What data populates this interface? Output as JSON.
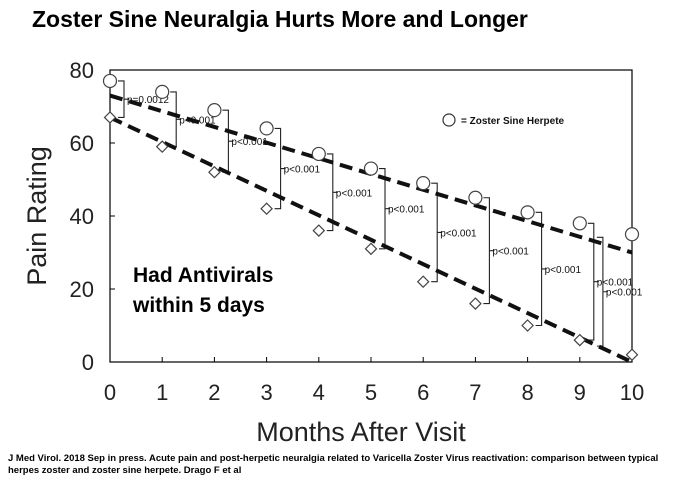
{
  "title": "Zoster Sine Neuralgia Hurts More and Longer",
  "citation": "J Med Virol. 2018 Sep in press. Acute pain and post-herpetic neuralgia related to Varicella Zoster Virus reactivation: comparison between typical herpes zoster and zoster sine herpete. Drago F et al",
  "chart_data": {
    "type": "scatter",
    "xlabel": "Months After Visit",
    "ylabel": "Pain Rating",
    "xlim": [
      0,
      10
    ],
    "ylim": [
      0,
      80
    ],
    "x_ticks": [
      "0",
      "1",
      "2",
      "3",
      "4",
      "5",
      "6",
      "7",
      "8",
      "9",
      "10"
    ],
    "y_ticks": [
      "0",
      "20",
      "40",
      "60",
      "80"
    ],
    "grid": false,
    "legend_position": "top-right",
    "annotation": [
      "Had Antivirals",
      "within 5 days"
    ],
    "series": [
      {
        "name": "= Zoster Sine Herpete",
        "marker": "circle",
        "x": [
          0,
          1,
          2,
          3,
          4,
          5,
          6,
          7,
          8,
          9,
          10
        ],
        "y": [
          77,
          74,
          69,
          64,
          57,
          53,
          49,
          45,
          41,
          38,
          35
        ]
      },
      {
        "marker": "diamond",
        "x": [
          0,
          1,
          2,
          3,
          4,
          5,
          6,
          7,
          8,
          9,
          10
        ],
        "y": [
          67,
          59,
          52,
          42,
          36,
          31,
          22,
          16,
          10,
          6,
          2
        ]
      }
    ],
    "trendlines": [
      {
        "series": 0,
        "x": [
          0,
          10
        ],
        "y": [
          73,
          30
        ]
      },
      {
        "series": 1,
        "x": [
          0,
          10
        ],
        "y": [
          67,
          0
        ]
      }
    ],
    "p_values": [
      {
        "x": 0,
        "label": "p=0.0012"
      },
      {
        "x": 1,
        "label": "p<0.001"
      },
      {
        "x": 2,
        "label": "p<0.001"
      },
      {
        "x": 3,
        "label": "p<0.001"
      },
      {
        "x": 4,
        "label": "p<0.001"
      },
      {
        "x": 5,
        "label": "p<0.001"
      },
      {
        "x": 6,
        "label": "p<0.001"
      },
      {
        "x": 7,
        "label": "p<0.001"
      },
      {
        "x": 8,
        "label": "p<0.001"
      },
      {
        "x": 9,
        "label": "p<0.001"
      },
      {
        "x": 9.5,
        "label": "p<0.001"
      }
    ]
  }
}
